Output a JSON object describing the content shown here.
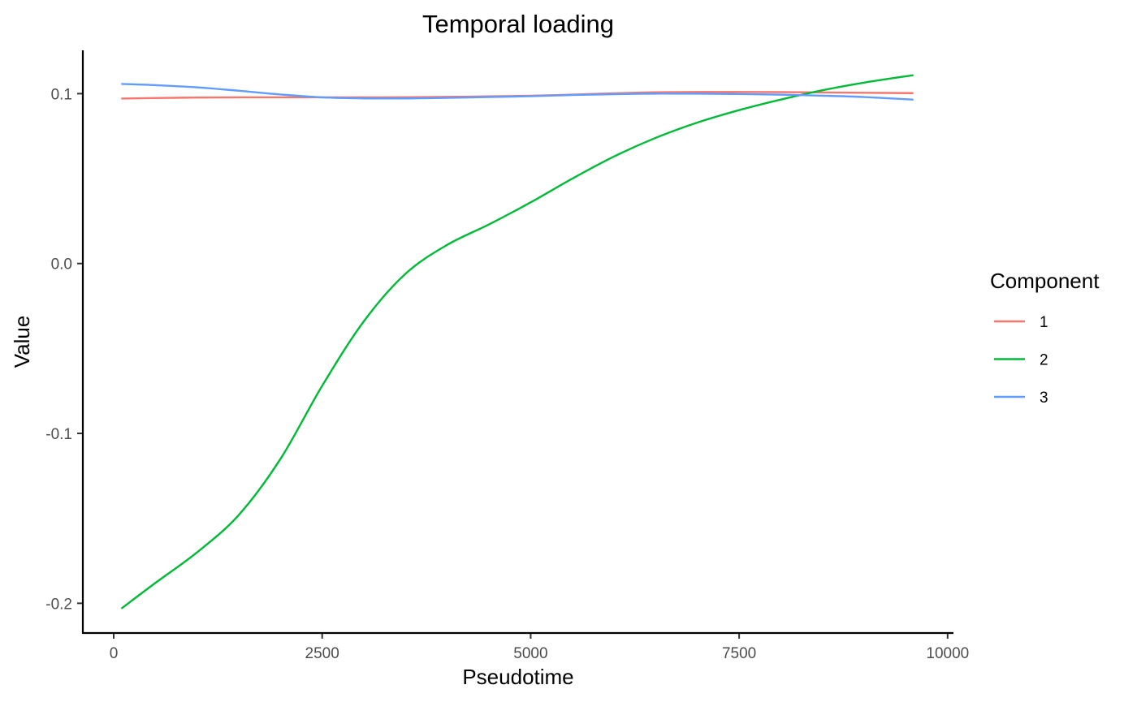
{
  "chart_data": {
    "type": "line",
    "title": "Temporal loading",
    "xlabel": "Pseudotime",
    "ylabel": "Value",
    "xlim": [
      -370,
      10070
    ],
    "ylim": [
      -0.2175,
      0.1255
    ],
    "x_ticks": [
      0,
      2500,
      5000,
      7500,
      10000
    ],
    "x_tick_labels": [
      "0",
      "2500",
      "5000",
      "7500",
      "10000"
    ],
    "y_ticks": [
      -0.2,
      -0.1,
      0.0,
      0.1
    ],
    "y_tick_labels": [
      "-0.2",
      "-0.1",
      "0.0",
      "0.1"
    ],
    "grid": false,
    "legend": {
      "title": "Component",
      "position": "right"
    },
    "x": [
      100,
      500,
      1000,
      1500,
      2000,
      2500,
      3000,
      3500,
      4000,
      4500,
      5000,
      5500,
      6000,
      6500,
      7000,
      7500,
      8000,
      8500,
      9000,
      9580
    ],
    "series": [
      {
        "name": "1",
        "color": "#F8766D",
        "values": [
          0.0971,
          0.0974,
          0.0977,
          0.0978,
          0.0978,
          0.0978,
          0.0978,
          0.0979,
          0.0981,
          0.0984,
          0.0988,
          0.0994,
          0.1002,
          0.1008,
          0.101,
          0.101,
          0.1009,
          0.1007,
          0.1005,
          0.1003
        ]
      },
      {
        "name": "2",
        "color": "#00BA38",
        "values": [
          -0.2028,
          -0.188,
          -0.17,
          -0.148,
          -0.115,
          -0.072,
          -0.034,
          -0.006,
          0.011,
          0.023,
          0.036,
          0.05,
          0.063,
          0.074,
          0.083,
          0.0903,
          0.0965,
          0.102,
          0.1065,
          0.1108
        ]
      },
      {
        "name": "3",
        "color": "#619CFF",
        "values": [
          0.1057,
          0.105,
          0.1037,
          0.1017,
          0.0995,
          0.0978,
          0.0972,
          0.0972,
          0.0975,
          0.098,
          0.0985,
          0.0992,
          0.0997,
          0.1,
          0.1,
          0.0998,
          0.0994,
          0.0988,
          0.098,
          0.0965
        ]
      }
    ]
  }
}
